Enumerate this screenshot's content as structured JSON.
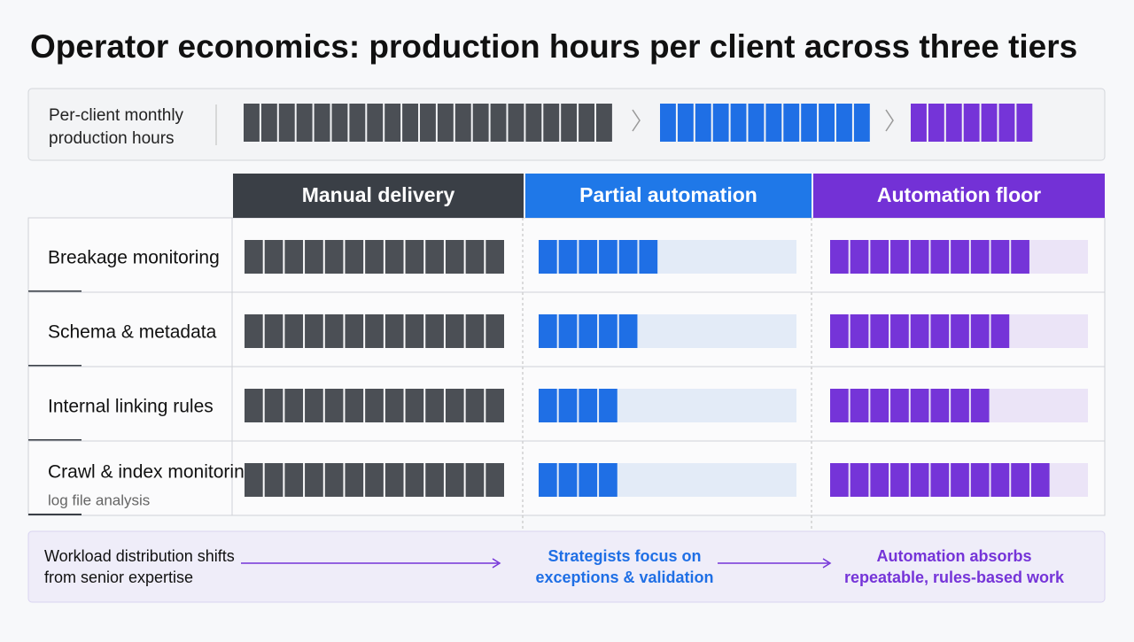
{
  "title": "Operator economics: production hours per client across three tiers",
  "summary": {
    "label": [
      "Per-client monthly",
      "production hours"
    ],
    "values": [
      21,
      12,
      7
    ]
  },
  "colors": [
    "#4b4f55",
    "#1f6fe5",
    "#7534d8"
  ],
  "track_colors": [
    "#4b4f55",
    "#e3ebf7",
    "#ebe4f7"
  ],
  "header_colors": [
    "#3a3f46",
    "#1f78e8",
    "#7331d6"
  ],
  "columns": [
    "Manual delivery",
    "Partial automation",
    "Automation floor"
  ],
  "track_max": 13,
  "rows": [
    {
      "label": "Breakage monitoring",
      "values": [
        13,
        6,
        10
      ]
    },
    {
      "label": "Schema & metadata",
      "values": [
        13,
        5,
        9
      ]
    },
    {
      "label": "Internal linking rules",
      "values": [
        13,
        4,
        8
      ]
    },
    {
      "label": "Crawl & index monitoring",
      "sublabel": "log file analysis",
      "values": [
        13,
        4,
        11
      ]
    }
  ],
  "footer": [
    [
      "Workload distribution shifts",
      "from senior expertise"
    ],
    [
      "Strategists focus on",
      "exceptions & validation"
    ],
    [
      "Automation absorbs",
      "repeatable, rules-based work"
    ]
  ]
}
